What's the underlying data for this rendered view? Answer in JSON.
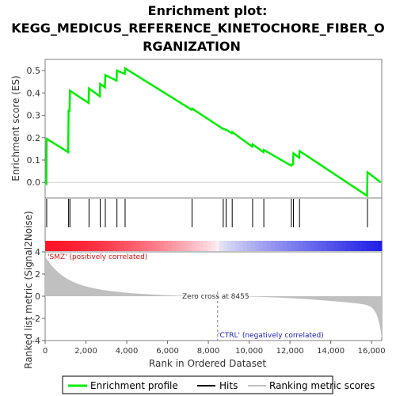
{
  "chart_data": {
    "type": "line",
    "title_lines": [
      "Enrichment plot:",
      "KEGG_MEDICUS_REFERENCE_KINETOCHORE_FIBER_O",
      "RGANIZATION"
    ],
    "ylabel_top": "Enrichment score (ES)",
    "ylabel_bottom": "Ranked list metric (Signal2Noise)",
    "xlabel": "Rank in Ordered Dataset",
    "xlim": [
      0,
      16500
    ],
    "x_ticks": [
      "0",
      "2,000",
      "4,000",
      "6,000",
      "8,000",
      "10,000",
      "12,000",
      "14,000",
      "16,000"
    ],
    "x_tick_values": [
      0,
      2000,
      4000,
      6000,
      8000,
      10000,
      12000,
      14000,
      16000
    ],
    "es_ylim": [
      -0.07,
      0.55
    ],
    "es_y_ticks": [
      "0.0",
      "0.1",
      "0.2",
      "0.3",
      "0.4",
      "0.5"
    ],
    "es_y_tick_values": [
      0.0,
      0.1,
      0.2,
      0.3,
      0.4,
      0.5
    ],
    "metric_ylim": [
      -4,
      4
    ],
    "metric_y_ticks": [
      "-4",
      "-2",
      "0",
      "2",
      "4"
    ],
    "metric_y_tick_values": [
      -4,
      -2,
      0,
      2,
      4
    ],
    "enrichment_profile": {
      "x": [
        0,
        60,
        75,
        1130,
        1150,
        1195,
        1215,
        2130,
        2150,
        2680,
        2700,
        2930,
        2950,
        3500,
        3520,
        3900,
        3920,
        7180,
        7200,
        8710,
        8730,
        8850,
        8870,
        9150,
        9170,
        10150,
        10170,
        10700,
        10720,
        12050,
        12070,
        12150,
        12170,
        12450,
        12470,
        15780,
        15800,
        16450
      ],
      "values": [
        0.0,
        -0.005,
        0.195,
        0.135,
        0.32,
        0.32,
        0.41,
        0.355,
        0.42,
        0.385,
        0.44,
        0.425,
        0.48,
        0.455,
        0.5,
        0.485,
        0.51,
        0.325,
        0.33,
        0.24,
        0.24,
        0.235,
        0.235,
        0.22,
        0.225,
        0.16,
        0.17,
        0.135,
        0.145,
        0.075,
        0.08,
        0.08,
        0.13,
        0.11,
        0.14,
        -0.06,
        0.045,
        0.0
      ]
    },
    "hits": [
      75,
      1150,
      1215,
      2150,
      2700,
      2950,
      3520,
      3920,
      7200,
      8730,
      8870,
      9170,
      10170,
      10720,
      12070,
      12170,
      12470,
      15800
    ],
    "zero_cross_rank": 8455,
    "zero_cross_text": "Zero cross at 8455",
    "positive_label": "'SMZ' (positively correlated)",
    "negative_label": "'CTRL' (negatively correlated)",
    "legend": [
      "Enrichment profile",
      "Hits",
      "Ranking metric scores"
    ],
    "colors": {
      "profile": "#00ee00",
      "hits": "#000000",
      "metric_fill": "#c0c0c0",
      "positive_text": "#e01010",
      "negative_text": "#2020c0",
      "zero_line": "#808080",
      "grid_line": "#d0d0d0"
    }
  }
}
